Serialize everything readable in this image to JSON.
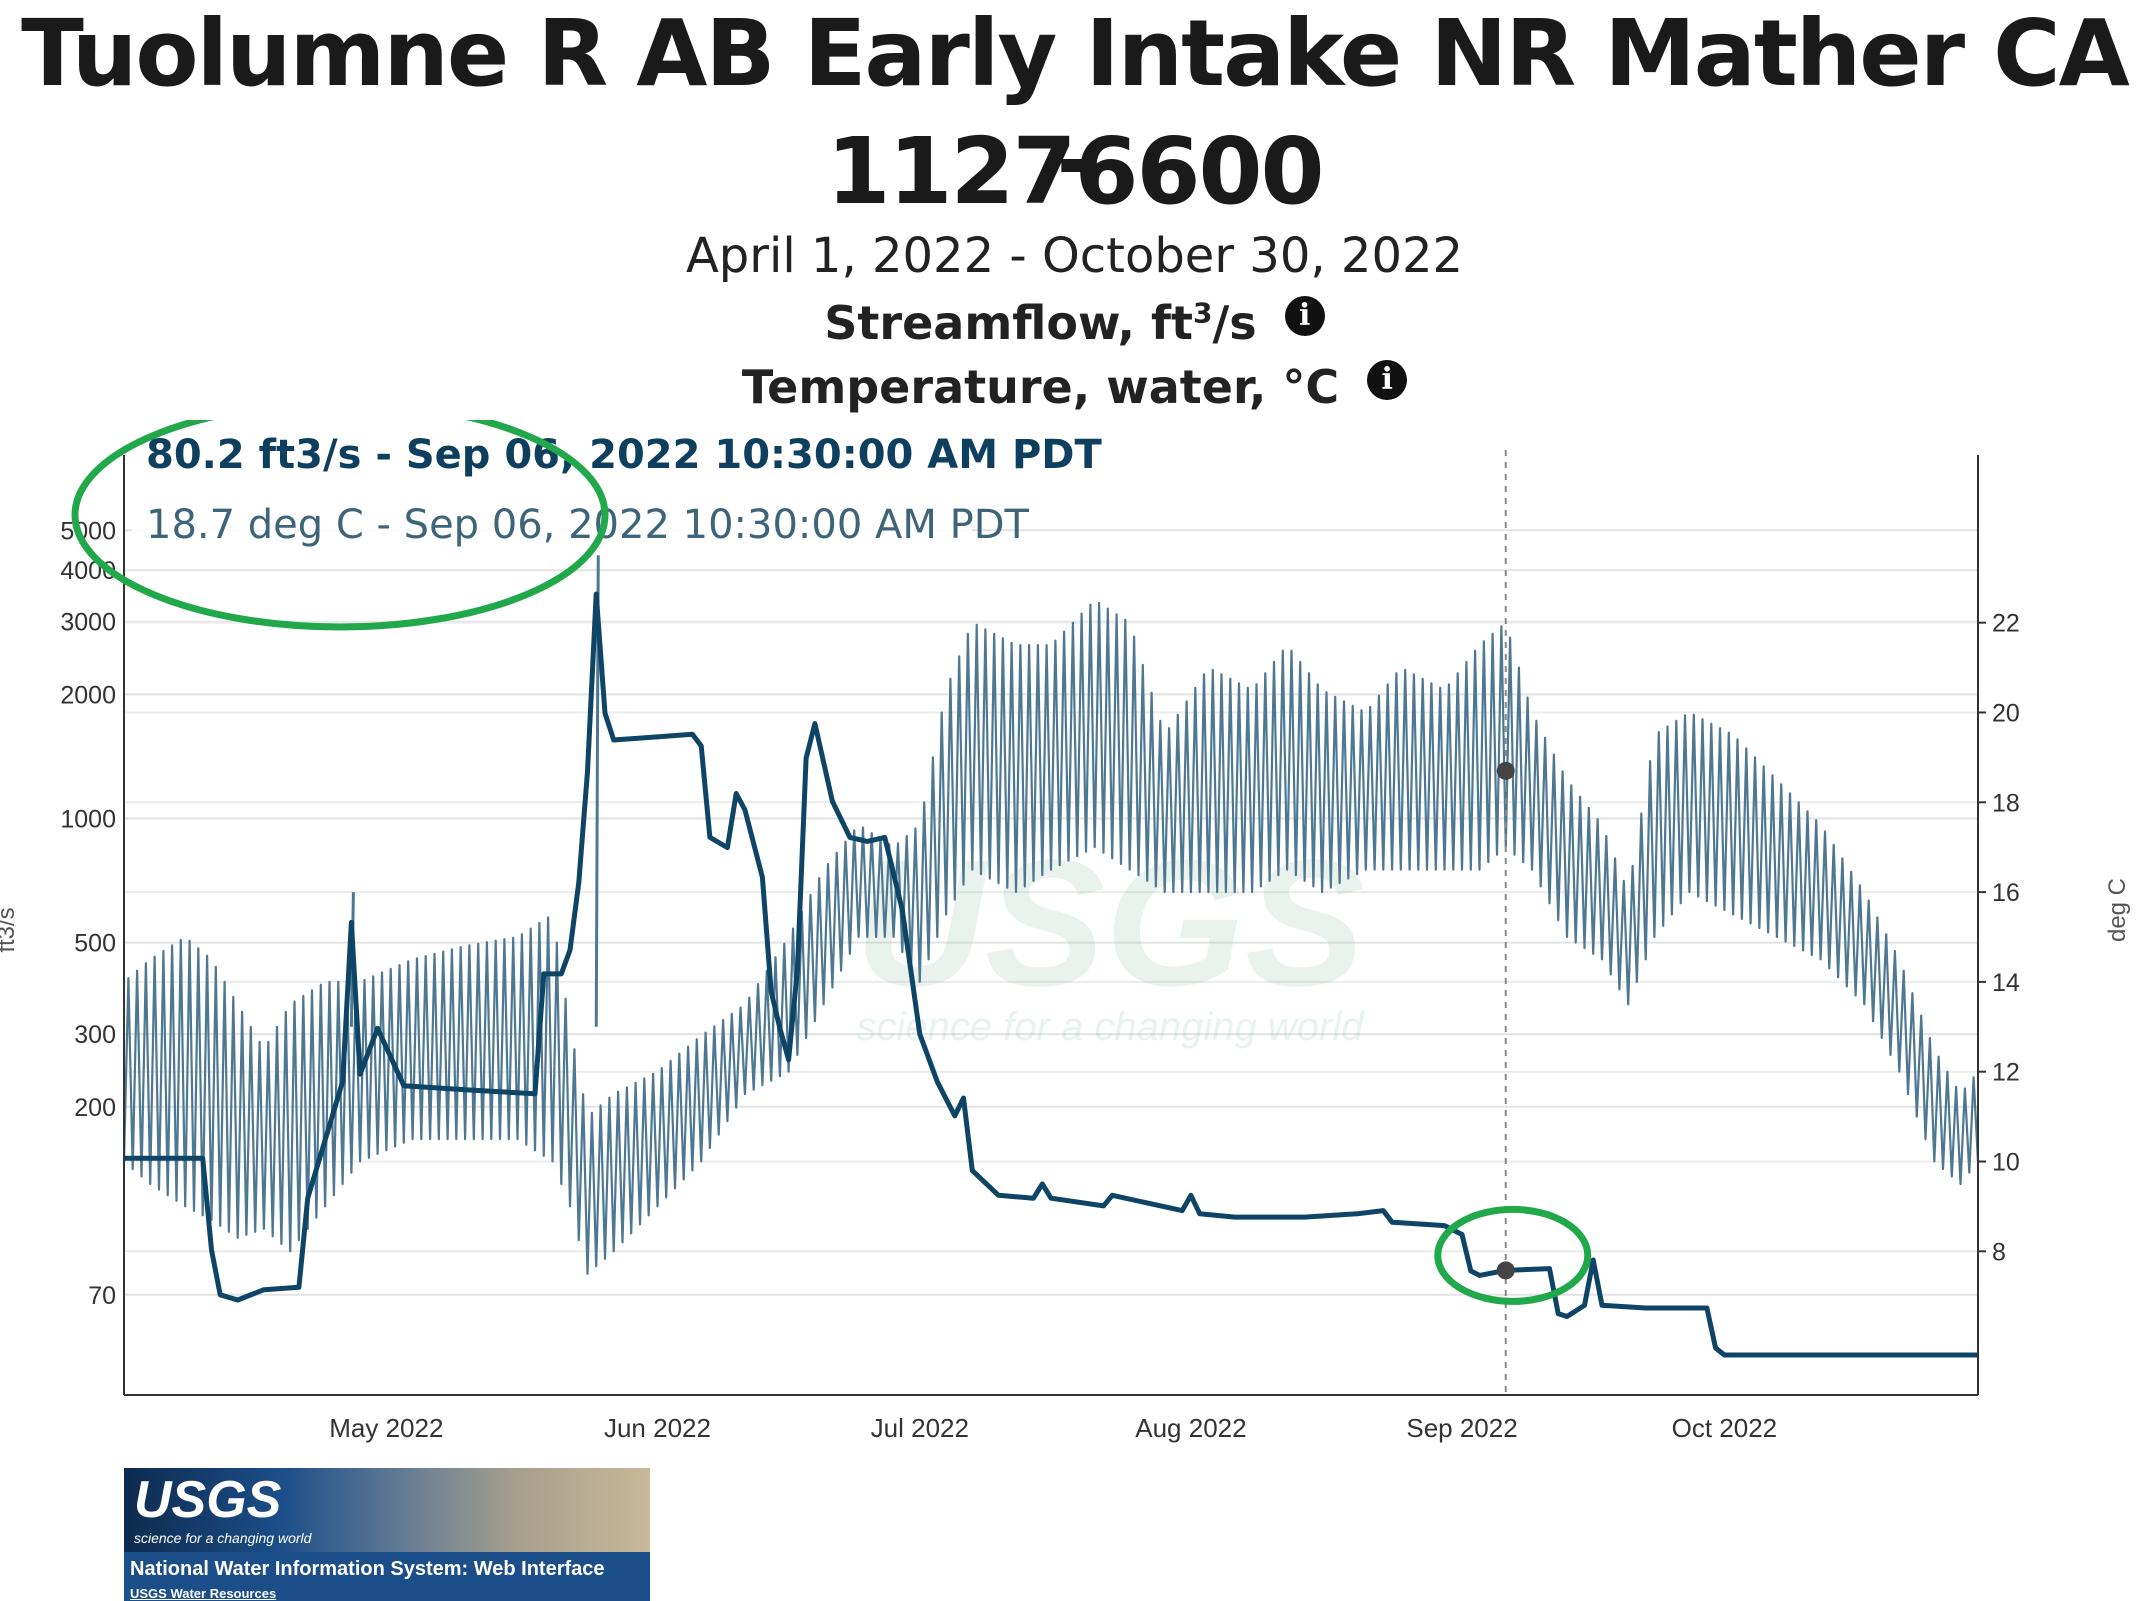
{
  "header": {
    "title_line1": "Tuolumne R AB Early Intake NR Mather CA -",
    "title_line2": "11276600",
    "date_range": "April 1, 2022 - October 30, 2022",
    "param1_label": "Streamflow, ft",
    "param1_sup": "3",
    "param1_suffix": "/s",
    "param2_label": "Temperature, water, °C",
    "info_glyph": "i"
  },
  "tooltip": {
    "streamflow": "80.2 ft3/s - Sep 06, 2022 10:30:00 AM PDT",
    "temperature": "18.7 deg C - Sep 06, 2022 10:30:00 AM PDT"
  },
  "chart_data": {
    "type": "line",
    "xlim": [
      "2022-04-01",
      "2022-10-30"
    ],
    "x_ticks": [
      "May 2022",
      "Jun 2022",
      "Jul 2022",
      "Aug 2022",
      "Sep 2022",
      "Oct 2022"
    ],
    "y_left": {
      "label": "ft3/s",
      "scale": "log",
      "ticks": [
        70,
        200,
        300,
        500,
        1000,
        2000,
        3000,
        4000,
        5000
      ]
    },
    "y_right": {
      "label": "deg C",
      "ticks": [
        8,
        10,
        12,
        14,
        16,
        18,
        20,
        22
      ]
    },
    "cursor": {
      "date": "2022-09-06",
      "streamflow": 80.2,
      "temperature": 18.7
    },
    "series": [
      {
        "name": "Streamflow, ft3/s",
        "axis": "left",
        "color": "#0e4466",
        "points": [
          [
            "2022-04-01",
            150
          ],
          [
            "2022-04-10",
            150
          ],
          [
            "2022-04-11",
            90
          ],
          [
            "2022-04-12",
            70
          ],
          [
            "2022-04-14",
            68
          ],
          [
            "2022-04-17",
            72
          ],
          [
            "2022-04-21",
            73
          ],
          [
            "2022-04-22",
            120
          ],
          [
            "2022-04-26",
            230
          ],
          [
            "2022-04-27",
            560
          ],
          [
            "2022-04-28",
            240
          ],
          [
            "2022-04-30",
            310
          ],
          [
            "2022-05-03",
            225
          ],
          [
            "2022-05-10",
            220
          ],
          [
            "2022-05-18",
            215
          ],
          [
            "2022-05-19",
            420
          ],
          [
            "2022-05-21",
            420
          ],
          [
            "2022-05-22",
            480
          ],
          [
            "2022-05-23",
            700
          ],
          [
            "2022-05-24",
            1300
          ],
          [
            "2022-05-25",
            3500
          ],
          [
            "2022-05-26",
            1800
          ],
          [
            "2022-05-27",
            1550
          ],
          [
            "2022-06-05",
            1600
          ],
          [
            "2022-06-06",
            1500
          ],
          [
            "2022-06-07",
            900
          ],
          [
            "2022-06-09",
            850
          ],
          [
            "2022-06-10",
            1150
          ],
          [
            "2022-06-11",
            1050
          ],
          [
            "2022-06-13",
            720
          ],
          [
            "2022-06-14",
            380
          ],
          [
            "2022-06-15",
            310
          ],
          [
            "2022-06-16",
            260
          ],
          [
            "2022-06-17",
            430
          ],
          [
            "2022-06-18",
            1400
          ],
          [
            "2022-06-19",
            1700
          ],
          [
            "2022-06-21",
            1100
          ],
          [
            "2022-06-23",
            900
          ],
          [
            "2022-06-25",
            880
          ],
          [
            "2022-06-27",
            900
          ],
          [
            "2022-06-29",
            600
          ],
          [
            "2022-07-01",
            300
          ],
          [
            "2022-07-03",
            230
          ],
          [
            "2022-07-05",
            190
          ],
          [
            "2022-07-06",
            210
          ],
          [
            "2022-07-07",
            140
          ],
          [
            "2022-07-10",
            122
          ],
          [
            "2022-07-14",
            120
          ],
          [
            "2022-07-15",
            130
          ],
          [
            "2022-07-16",
            120
          ],
          [
            "2022-07-22",
            115
          ],
          [
            "2022-07-23",
            122
          ],
          [
            "2022-07-31",
            112
          ],
          [
            "2022-08-01",
            122
          ],
          [
            "2022-08-02",
            110
          ],
          [
            "2022-08-06",
            108
          ],
          [
            "2022-08-14",
            108
          ],
          [
            "2022-08-20",
            110
          ],
          [
            "2022-08-23",
            112
          ],
          [
            "2022-08-24",
            105
          ],
          [
            "2022-08-30",
            103
          ],
          [
            "2022-09-01",
            98
          ],
          [
            "2022-09-02",
            80
          ],
          [
            "2022-09-03",
            78
          ],
          [
            "2022-09-06",
            80.2
          ],
          [
            "2022-09-11",
            81
          ],
          [
            "2022-09-12",
            63
          ],
          [
            "2022-09-13",
            62
          ],
          [
            "2022-09-15",
            66
          ],
          [
            "2022-09-16",
            85
          ],
          [
            "2022-09-17",
            66
          ],
          [
            "2022-09-22",
            65
          ],
          [
            "2022-09-29",
            65
          ],
          [
            "2022-09-30",
            52
          ],
          [
            "2022-10-01",
            50
          ],
          [
            "2022-10-10",
            50
          ],
          [
            "2022-10-20",
            50
          ],
          [
            "2022-10-30",
            50
          ]
        ]
      },
      {
        "name": "Temperature, water, °C",
        "axis": "right",
        "color": "#4e7891",
        "envelope": [
          [
            "2022-04-01",
            10,
            14.0
          ],
          [
            "2022-04-04",
            9.5,
            14.5
          ],
          [
            "2022-04-08",
            9.0,
            15.0
          ],
          [
            "2022-04-11",
            8.7,
            14.5
          ],
          [
            "2022-04-14",
            8.3,
            13.5
          ],
          [
            "2022-04-17",
            8.5,
            12.5
          ],
          [
            "2022-04-20",
            8.0,
            13.5
          ],
          [
            "2022-04-24",
            9.0,
            14.0
          ],
          [
            "2022-04-28",
            10.0,
            14.0
          ],
          [
            "2022-05-04",
            10.5,
            14.5
          ],
          [
            "2022-05-10",
            10.5,
            14.8
          ],
          [
            "2022-05-16",
            10.5,
            15.0
          ],
          [
            "2022-05-20",
            10.0,
            15.5
          ],
          [
            "2022-05-22",
            9.0,
            13.0
          ],
          [
            "2022-05-24",
            7.5,
            11.0
          ],
          [
            "2022-05-27",
            8.0,
            11.5
          ],
          [
            "2022-06-01",
            9.0,
            12.0
          ],
          [
            "2022-06-06",
            10.0,
            12.8
          ],
          [
            "2022-06-11",
            11.5,
            13.5
          ],
          [
            "2022-06-16",
            12.0,
            15.0
          ],
          [
            "2022-06-20",
            13.5,
            16.5
          ],
          [
            "2022-06-24",
            15.0,
            17.5
          ],
          [
            "2022-06-28",
            15.0,
            17.0
          ],
          [
            "2022-07-01",
            14.0,
            17.5
          ],
          [
            "2022-07-04",
            15.5,
            20.5
          ],
          [
            "2022-07-07",
            16.5,
            22.0
          ],
          [
            "2022-07-12",
            16.0,
            21.5
          ],
          [
            "2022-07-16",
            16.5,
            21.5
          ],
          [
            "2022-07-21",
            17.0,
            22.5
          ],
          [
            "2022-07-25",
            16.5,
            22.0
          ],
          [
            "2022-07-29",
            16.0,
            19.5
          ],
          [
            "2022-08-03",
            16.0,
            21.0
          ],
          [
            "2022-08-08",
            16.0,
            20.5
          ],
          [
            "2022-08-12",
            16.5,
            21.5
          ],
          [
            "2022-08-16",
            16.0,
            20.5
          ],
          [
            "2022-08-21",
            16.5,
            20.0
          ],
          [
            "2022-08-25",
            16.5,
            21.0
          ],
          [
            "2022-08-30",
            16.5,
            20.5
          ],
          [
            "2022-09-03",
            16.5,
            21.5
          ],
          [
            "2022-09-06",
            17.0,
            22.0
          ],
          [
            "2022-09-09",
            16.5,
            20.0
          ],
          [
            "2022-09-13",
            15.0,
            18.5
          ],
          [
            "2022-09-17",
            14.5,
            17.5
          ],
          [
            "2022-09-20",
            13.5,
            16.0
          ],
          [
            "2022-09-23",
            15.0,
            19.5
          ],
          [
            "2022-09-27",
            16.0,
            20.0
          ],
          [
            "2022-10-02",
            15.5,
            19.5
          ],
          [
            "2022-10-07",
            15.0,
            18.5
          ],
          [
            "2022-10-12",
            14.5,
            17.5
          ],
          [
            "2022-10-17",
            13.5,
            16.0
          ],
          [
            "2022-10-21",
            12.0,
            14.5
          ],
          [
            "2022-10-25",
            10.0,
            12.5
          ],
          [
            "2022-10-28",
            9.5,
            11.5
          ],
          [
            "2022-10-30",
            10.0,
            12.0
          ]
        ],
        "spikes": [
          [
            "2022-04-27",
            16.0
          ],
          [
            "2022-05-25",
            23.5
          ]
        ]
      }
    ],
    "annotations": [
      "green ellipse around tooltip",
      "green ellipse around cursor point on streamflow line"
    ],
    "watermark": {
      "word": "USGS",
      "tagline": "science for a changing world"
    }
  },
  "logo": {
    "word": "USGS",
    "tagline": "science for a changing world",
    "band": "National Water Information System: Web Interface",
    "link": "USGS Water Resources"
  }
}
